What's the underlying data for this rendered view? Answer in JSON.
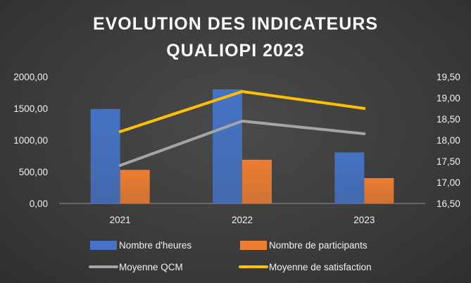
{
  "chart_data": {
    "type": "bar",
    "title_lines": [
      "EVOLUTION DES INDICATEURS",
      "QUALIOPI 2023"
    ],
    "categories": [
      "2021",
      "2022",
      "2023"
    ],
    "y_left": {
      "lim": [
        0,
        2000
      ],
      "ticks": [
        "0,00",
        "500,00",
        "1000,00",
        "1500,00",
        "2000,00"
      ]
    },
    "y_right": {
      "lim": [
        16.5,
        19.5
      ],
      "ticks": [
        "16,50",
        "17,00",
        "17,50",
        "18,00",
        "18,50",
        "19,00",
        "19,50"
      ]
    },
    "bar_series": [
      {
        "name": "Nombre d'heures",
        "values": [
          1490,
          1800,
          805
        ],
        "color": "#4472c4"
      },
      {
        "name": "Nombre de participants",
        "values": [
          530,
          690,
          400
        ],
        "color": "#ed7d31"
      }
    ],
    "line_series": [
      {
        "name": "Moyenne QCM",
        "values": [
          17.4,
          18.45,
          18.15
        ],
        "color": "#a5a5a5"
      },
      {
        "name": "Moyenne de satisfaction",
        "values": [
          18.2,
          19.15,
          18.75
        ],
        "color": "#ffc000"
      }
    ],
    "legend_order": [
      "Nombre d'heures",
      "Nombre de participants",
      "Moyenne QCM",
      "Moyenne de satisfaction"
    ],
    "legend_position": "bottom",
    "grid": false
  }
}
